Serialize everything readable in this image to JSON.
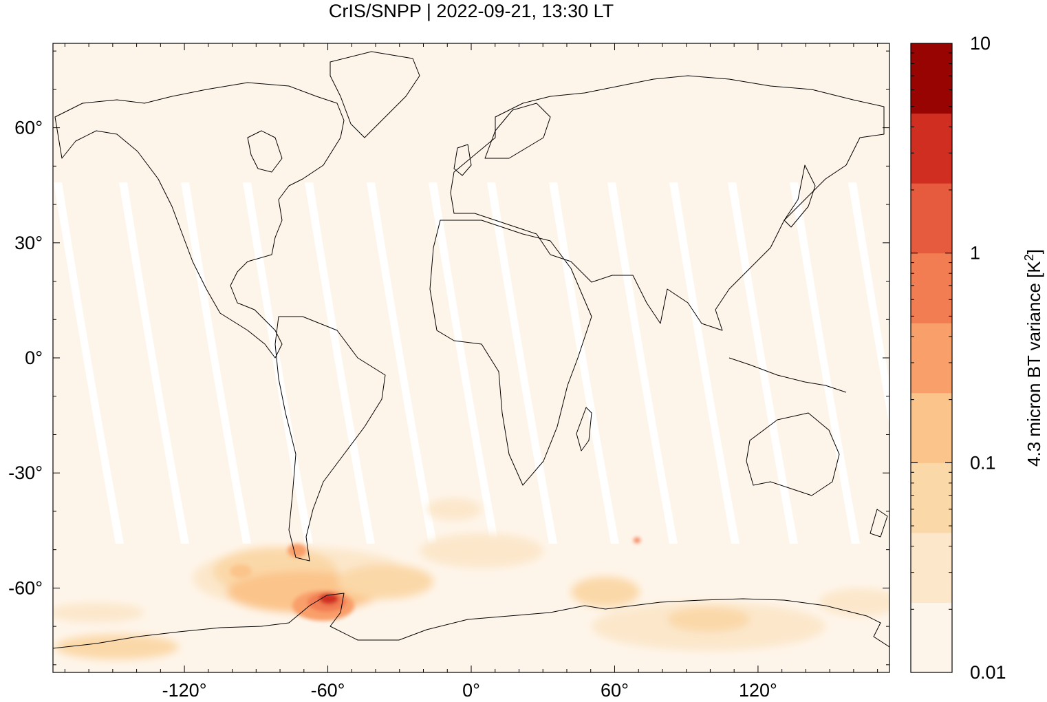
{
  "title": "CrIS/SNPP | 2022-09-21, 13:30 LT",
  "map": {
    "lon_range": [
      -175,
      175
    ],
    "lat_range": [
      -82,
      82
    ],
    "x_ticks": [
      {
        "value": -120,
        "label": "-120°"
      },
      {
        "value": -60,
        "label": "-60°"
      },
      {
        "value": 0,
        "label": "0°"
      },
      {
        "value": 60,
        "label": "60°"
      },
      {
        "value": 120,
        "label": "120°"
      }
    ],
    "y_ticks": [
      {
        "value": 60,
        "label": "60°"
      },
      {
        "value": 30,
        "label": "30°"
      },
      {
        "value": 0,
        "label": "0°"
      },
      {
        "value": -30,
        "label": "-30°"
      },
      {
        "value": -60,
        "label": "-60°"
      }
    ],
    "background_color": "#fef5ea",
    "swath_gap_color": "#ffffff",
    "coastline_color": "#000000"
  },
  "colorbar": {
    "label_main": "4.3 micron BT variance [K",
    "label_sup": "2",
    "label_end": "]",
    "scale": "log",
    "range": [
      0.01,
      10
    ],
    "ticks": [
      {
        "value": 10,
        "label": "10"
      },
      {
        "value": 1,
        "label": "1"
      },
      {
        "value": 0.1,
        "label": "0.1"
      },
      {
        "value": 0.01,
        "label": "0.01"
      }
    ],
    "colors": [
      "#fef5ea",
      "#fce7cb",
      "#fbd8a8",
      "#fbc48b",
      "#f99f6a",
      "#f27d52",
      "#e65b3e",
      "#cf2e20",
      "#980402"
    ]
  },
  "chart_data": {
    "type": "heatmap",
    "title": "CrIS/SNPP | 2022-09-21, 13:30 LT",
    "xlabel": "",
    "ylabel": "",
    "variable": "4.3 micron BT variance [K2]",
    "color_scale": "log",
    "range": [
      0.01,
      10
    ],
    "hotspots": [
      {
        "lon": -60,
        "lat": -66,
        "level": 5
      },
      {
        "lon": -90,
        "lat": -60,
        "level": 0.6
      },
      {
        "lon": -70,
        "lat": -54,
        "level": 0.6
      },
      {
        "lon": -40,
        "lat": -62,
        "level": 0.3
      },
      {
        "lon": 95,
        "lat": -70,
        "level": 0.25
      },
      {
        "lon": 55,
        "lat": -64,
        "level": 0.2
      },
      {
        "lon": -160,
        "lat": -72,
        "level": 0.15
      },
      {
        "lon": -140,
        "lat": -78,
        "level": 0.15
      }
    ]
  }
}
